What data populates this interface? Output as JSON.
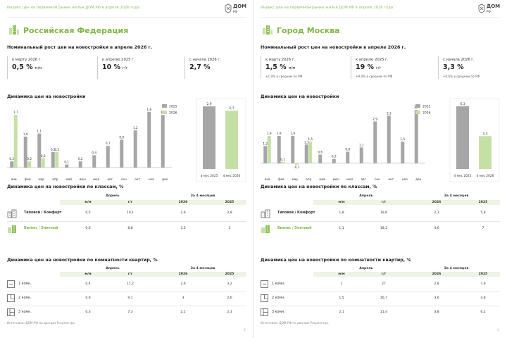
{
  "pages": [
    {
      "header": "Индекс цен на первичном рынке жилья ДОМ.РФ в апреле 2026 года",
      "logo_text": "ДОМ",
      "logo_sub": "РФ",
      "region_title": "Российская Федерация",
      "nominal_title": "Номинальный рост цен на новостройки в апреле 2026 г.",
      "cards": [
        {
          "label": "к марту 2026 г.",
          "value": "0,5 %",
          "unit": "м/м",
          "note": ""
        },
        {
          "label": "к апрелю 2025 г.",
          "value": "10 %",
          "unit": "г/г",
          "note": ""
        },
        {
          "label": "с начала 2026 г.",
          "value": "2,7 %",
          "unit": "",
          "note": ""
        }
      ],
      "dynamics_title": "Динамика цен на новостройки",
      "classes_title": "Динамика цен на новостройки по классам, %",
      "class_table": {
        "group_april": "Апрель",
        "group_4m": "За 4 месяцев",
        "cols": [
          "м/м",
          "г/г",
          "2026",
          "2025"
        ],
        "rows": [
          {
            "label": "Типовой / Комфорт",
            "icon": "standard-building-icon",
            "values": [
              "0,5",
              "10,1",
              "2,6",
              "2,8"
            ]
          },
          {
            "label": "Бизнес / Элитный",
            "icon": "premium-building-icon",
            "values": [
              "0,6",
              "8,8",
              "3,5",
              "3"
            ]
          }
        ]
      },
      "rooms_title": "Динамика цен на новостройки по комнатности квартир, %",
      "rooms_table": {
        "group_april": "Апрель",
        "group_4m": "За 4 месяцев",
        "cols": [
          "м/м",
          "г/г",
          "2026",
          "2025"
        ],
        "rows": [
          {
            "label": "1 комн.",
            "values": [
              "0,4",
              "11,2",
              "2,6",
              "3,2"
            ]
          },
          {
            "label": "2 комн.",
            "values": [
              "0,6",
              "9,1",
              "3",
              "2,6"
            ]
          },
          {
            "label": "3 комн.",
            "values": [
              "0,3",
              "7,3",
              "2,1",
              "2,3"
            ]
          }
        ]
      },
      "source": "Источники: ДОМ.РФ по данным Росреестра.",
      "page_number": "3"
    },
    {
      "header": "Индекс цен на первичном рынке жилья ДОМ.РФ в апреле 2026 года",
      "logo_text": "ДОМ",
      "logo_sub": "РФ",
      "region_title": "Город Москва",
      "nominal_title": "Номинальный рост цен на новостройки в апреле 2026 г.",
      "cards": [
        {
          "label": "к марту 2026 г.",
          "value": "1,5 %",
          "unit": "м/м",
          "note": "+1.0% в среднем по РФ"
        },
        {
          "label": "к апрелю 2025 г.",
          "value": "19 %",
          "unit": "г/г",
          "note": "+9.0% в среднем по РФ"
        },
        {
          "label": "с начала 2026 г.",
          "value": "3,3 %",
          "unit": "",
          "note": "+0.6% в среднем по РФ"
        }
      ],
      "dynamics_title": "Динамика цен на новостройки",
      "classes_title": "Динамика цен на новостройки по классам, %",
      "class_table": {
        "group_april": "Апрель",
        "group_4m": "За 4 месяцев",
        "cols": [
          "м/м",
          "г/г",
          "2026",
          "2025"
        ],
        "rows": [
          {
            "label": "Типовой / Комфорт",
            "icon": "standard-building-icon",
            "values": [
              "1,8",
              "19,6",
              "2,3",
              "5,8"
            ]
          },
          {
            "label": "Бизнес / Элитный",
            "icon": "premium-building-icon",
            "values": [
              "1,1",
              "18,2",
              "4,6",
              "7"
            ]
          }
        ]
      },
      "rooms_title": "Динамика цен на новостройки по комнатности квартир, %",
      "rooms_table": {
        "group_april": "Апрель",
        "group_4m": "За 4 месяцев",
        "cols": [
          "м/м",
          "г/г",
          "2026",
          "2025"
        ],
        "rows": [
          {
            "label": "1 комн.",
            "values": [
              "1",
              "27",
              "2,8",
              "7,6"
            ]
          },
          {
            "label": "2 комн.",
            "values": [
              "1,5",
              "16,7",
              "3,6",
              "4,8"
            ]
          },
          {
            "label": "3 комн.",
            "values": [
              "2,1",
              "11,4",
              "3,8",
              "6,2"
            ]
          }
        ]
      },
      "source": "Источники: ДОМ.РФ по данным Росреестра.",
      "page_number": "4"
    }
  ],
  "colors": {
    "series_2025": "#a6a6a6",
    "series_2026": "#c5e0a5",
    "accent": "#7fb744"
  },
  "chart_data": [
    {
      "type": "bar",
      "title": "Динамика цен на новостройки",
      "categories": [
        "янв",
        "фев",
        "мар",
        "апр",
        "май",
        "июн",
        "июл",
        "авг",
        "сен",
        "окт",
        "ноя",
        "дек"
      ],
      "series": [
        {
          "name": "2025",
          "values": [
            0.2,
            1.0,
            1.1,
            0.5,
            0.1,
            0.2,
            0.4,
            0.7,
            0.9,
            1.2,
            1.8,
            1.7
          ],
          "labels": [
            "0,2",
            "1,0",
            "1,1",
            "0,5",
            "0,1",
            "0,2",
            "0,4",
            "0,7",
            "0,9",
            "1,2",
            "1,8",
            "1,7"
          ]
        },
        {
          "name": "2026",
          "values": [
            1.7,
            0.2,
            0.3,
            0.5,
            null,
            null,
            null,
            null,
            null,
            null,
            null,
            null
          ],
          "labels": [
            "1,7",
            "0,2",
            "0,3",
            "0,5"
          ]
        }
      ],
      "legend": "top-right",
      "ylim": [
        0,
        2
      ]
    },
    {
      "type": "bar",
      "categories": [
        "4 мес 2025",
        "4 мес 2026"
      ],
      "values": [
        2.9,
        2.7
      ],
      "labels": [
        "2,9",
        "2,7"
      ]
    },
    {
      "type": "bar",
      "title": "Динамика цен на новостройки",
      "categories": [
        "янв",
        "фев",
        "мар",
        "апр",
        "май",
        "июн",
        "июл",
        "авг",
        "сен",
        "окт",
        "ноя",
        "дек"
      ],
      "series": [
        {
          "name": "2025",
          "values": [
            1.2,
            1.9,
            1.9,
            1.3,
            0.6,
            0.3,
            0.8,
            1.1,
            2.9,
            3.3,
            1.5,
            3.7
          ],
          "labels": [
            "1,2",
            "1,9",
            "1,9",
            "1,3",
            "0,6",
            "0,3",
            "0,8",
            "1,1",
            "2,9",
            "3,3",
            "1,5",
            "3,7"
          ]
        },
        {
          "name": "2026",
          "values": [
            1.9,
            0.1,
            -0.1,
            1.5,
            null,
            null,
            null,
            null,
            null,
            null,
            null,
            null
          ],
          "labels": [
            "1,9",
            "0,1",
            "-0,1",
            "1,5"
          ]
        }
      ],
      "legend": "top-right",
      "ylim": [
        -0.3,
        4
      ]
    },
    {
      "type": "bar",
      "categories": [
        "4 мес 2025",
        "4 мес 2026"
      ],
      "values": [
        6.3,
        3.3
      ],
      "labels": [
        "6,3",
        "3,3"
      ]
    }
  ]
}
